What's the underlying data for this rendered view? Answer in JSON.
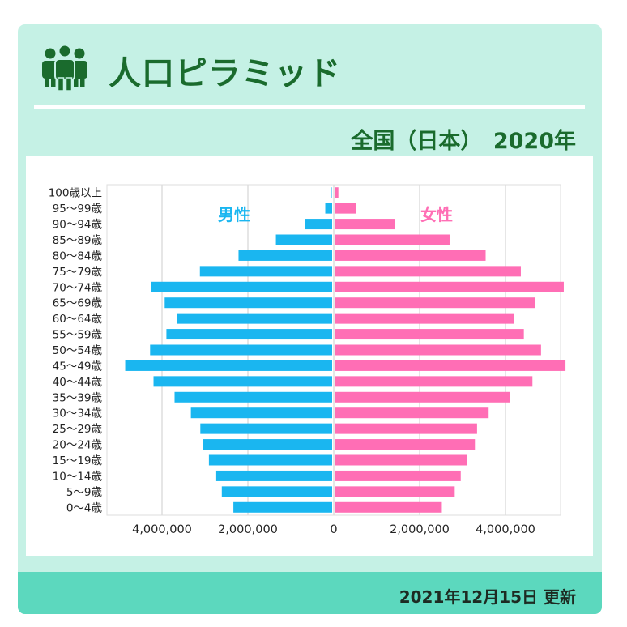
{
  "header": {
    "title": "人口ピラミッド",
    "subtitle": "全国（日本）　2020年",
    "icon": "people-group-icon"
  },
  "footer": {
    "updated": "2021年12月15日 更新"
  },
  "colors": {
    "male": "#1ab6f0",
    "female": "#ff6eb5",
    "title": "#1a6b2d",
    "card": "#c5f1e5",
    "footer": "#5cd8be"
  },
  "chart_data": {
    "type": "bar",
    "orientation": "horizontal-butterfly",
    "categories": [
      "100歳以上",
      "95〜99歳",
      "90〜94歳",
      "85〜89歳",
      "80〜84歳",
      "75〜79歳",
      "70〜74歳",
      "65〜69歳",
      "60〜64歳",
      "55〜59歳",
      "50〜54歳",
      "45〜49歳",
      "40〜44歳",
      "35〜39歳",
      "30〜34歳",
      "25〜29歳",
      "20〜24歳",
      "15〜19歳",
      "10〜14歳",
      "5〜9歳",
      "0〜4歳"
    ],
    "series": [
      {
        "name": "男性",
        "side": "left",
        "color": "#1ab6f0",
        "values": [
          10000,
          160000,
          640000,
          1310000,
          2180000,
          3080000,
          4220000,
          3900000,
          3610000,
          3860000,
          4240000,
          4820000,
          4160000,
          3670000,
          3290000,
          3070000,
          3010000,
          2870000,
          2700000,
          2570000,
          2300000
        ]
      },
      {
        "name": "女性",
        "side": "right",
        "color": "#ff6eb5",
        "values": [
          70000,
          490000,
          1380000,
          2660000,
          3500000,
          4320000,
          5320000,
          4660000,
          4160000,
          4390000,
          4790000,
          5360000,
          4590000,
          4060000,
          3570000,
          3300000,
          3250000,
          3060000,
          2920000,
          2780000,
          2480000
        ]
      }
    ],
    "xticks": [
      "4,000,000",
      "2,000,000",
      "0",
      "2,000,000",
      "4,000,000"
    ],
    "xlim": [
      -5000000,
      5000000
    ],
    "grid": true,
    "legend": "in-plot, top"
  }
}
